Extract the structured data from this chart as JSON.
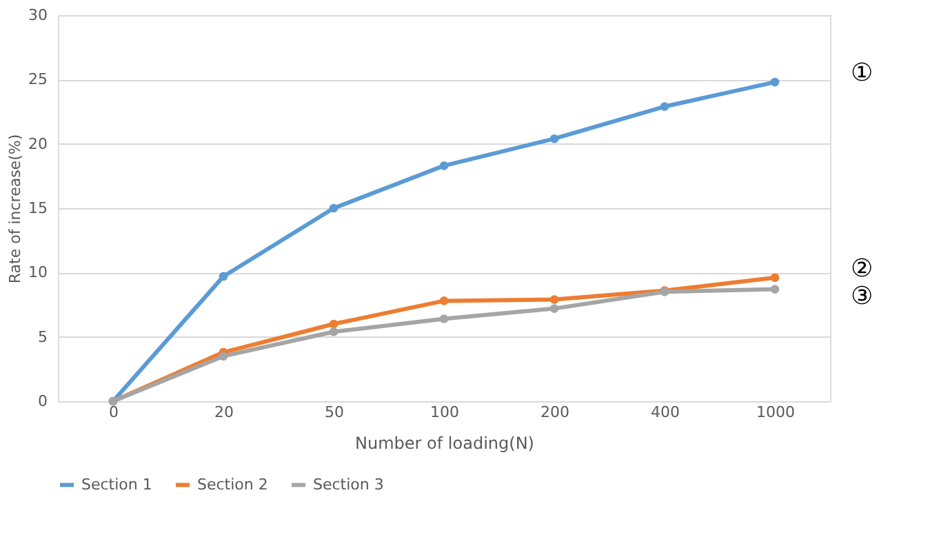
{
  "chart_data": {
    "type": "line",
    "xlabel": "Number of loading(N)",
    "ylabel": "Rate of increase(%)",
    "categories": [
      "0",
      "20",
      "50",
      "100",
      "200",
      "400",
      "1000"
    ],
    "series": [
      {
        "name": "Section 1",
        "color": "#5b9bd5",
        "values": [
          0,
          9.7,
          15.0,
          18.3,
          20.4,
          22.9,
          24.8
        ]
      },
      {
        "name": "Section 2",
        "color": "#ed7d31",
        "values": [
          0,
          3.8,
          6.0,
          7.8,
          7.9,
          8.6,
          9.6
        ]
      },
      {
        "name": "Section 3",
        "color": "#a5a5a5",
        "values": [
          0,
          3.5,
          5.4,
          6.4,
          7.2,
          8.5,
          8.7
        ]
      }
    ],
    "ylim": [
      0,
      30
    ],
    "yticks": [
      0,
      5,
      10,
      15,
      20,
      25,
      30
    ],
    "grid": "y",
    "legend": "bottom",
    "marker": "circle",
    "line_style": "solid",
    "annotations": [
      "①",
      "②",
      "③"
    ]
  }
}
